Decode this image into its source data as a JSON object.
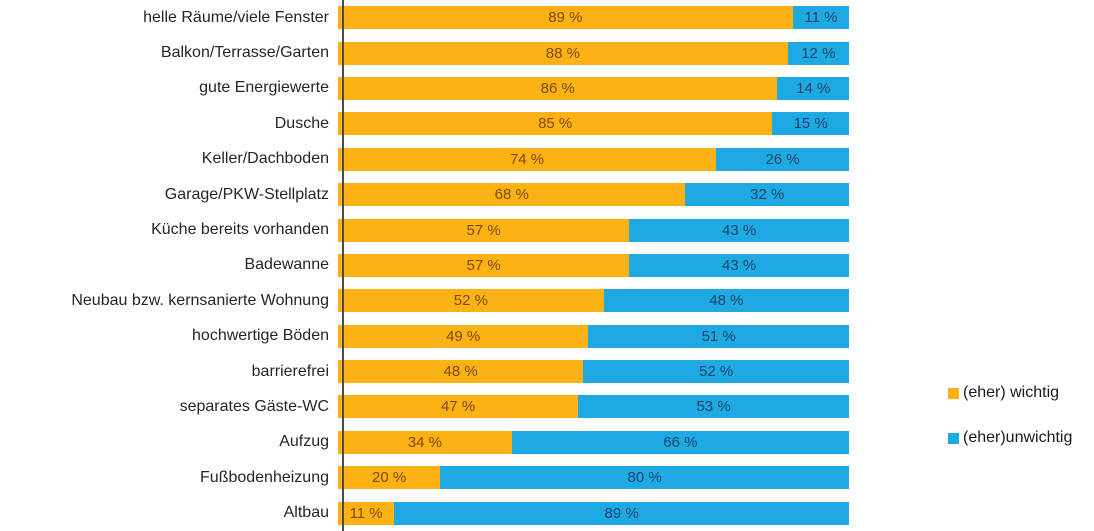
{
  "chart_data": {
    "type": "bar",
    "orientation": "horizontal",
    "stacked": true,
    "title": "",
    "xlabel": "",
    "ylabel": "",
    "xlim": [
      0,
      100
    ],
    "grid": false,
    "unit": "%",
    "value_label_format": "{value} %",
    "legend_position": "right",
    "categories": [
      "helle Räume/viele Fenster",
      "Balkon/Terrasse/Garten",
      "gute Energiewerte",
      "Dusche",
      "Keller/Dachboden",
      "Garage/PKW-Stellplatz",
      "Küche bereits vorhanden",
      "Badewanne",
      "Neubau bzw. kernsanierte Wohnung",
      "hochwertige Böden",
      "barrierefrei",
      "separates Gäste-WC",
      "Aufzug",
      "Fußbodenheizung",
      "Altbau"
    ],
    "series": [
      {
        "name": "(eher) wichtig",
        "color": "#FCB215",
        "label_color": "#7C4A03",
        "values": [
          89,
          88,
          86,
          85,
          74,
          68,
          57,
          57,
          52,
          49,
          48,
          47,
          34,
          20,
          11
        ]
      },
      {
        "name": "(eher)unwichtig",
        "color": "#1FA9E2",
        "label_color": "#17446B",
        "values": [
          11,
          12,
          14,
          15,
          26,
          32,
          43,
          43,
          48,
          51,
          52,
          53,
          66,
          80,
          89
        ]
      }
    ]
  },
  "legend": {
    "items": [
      {
        "label": "(eher) wichtig",
        "color": "#FCB215"
      },
      {
        "label": "(eher)unwichtig",
        "color": "#1FA9E2"
      }
    ]
  },
  "colors": {
    "background": "#FFFFFF",
    "axis_line": "#4A4A4A",
    "category_text": "#262626",
    "legend_text": "#1A1A1A"
  }
}
